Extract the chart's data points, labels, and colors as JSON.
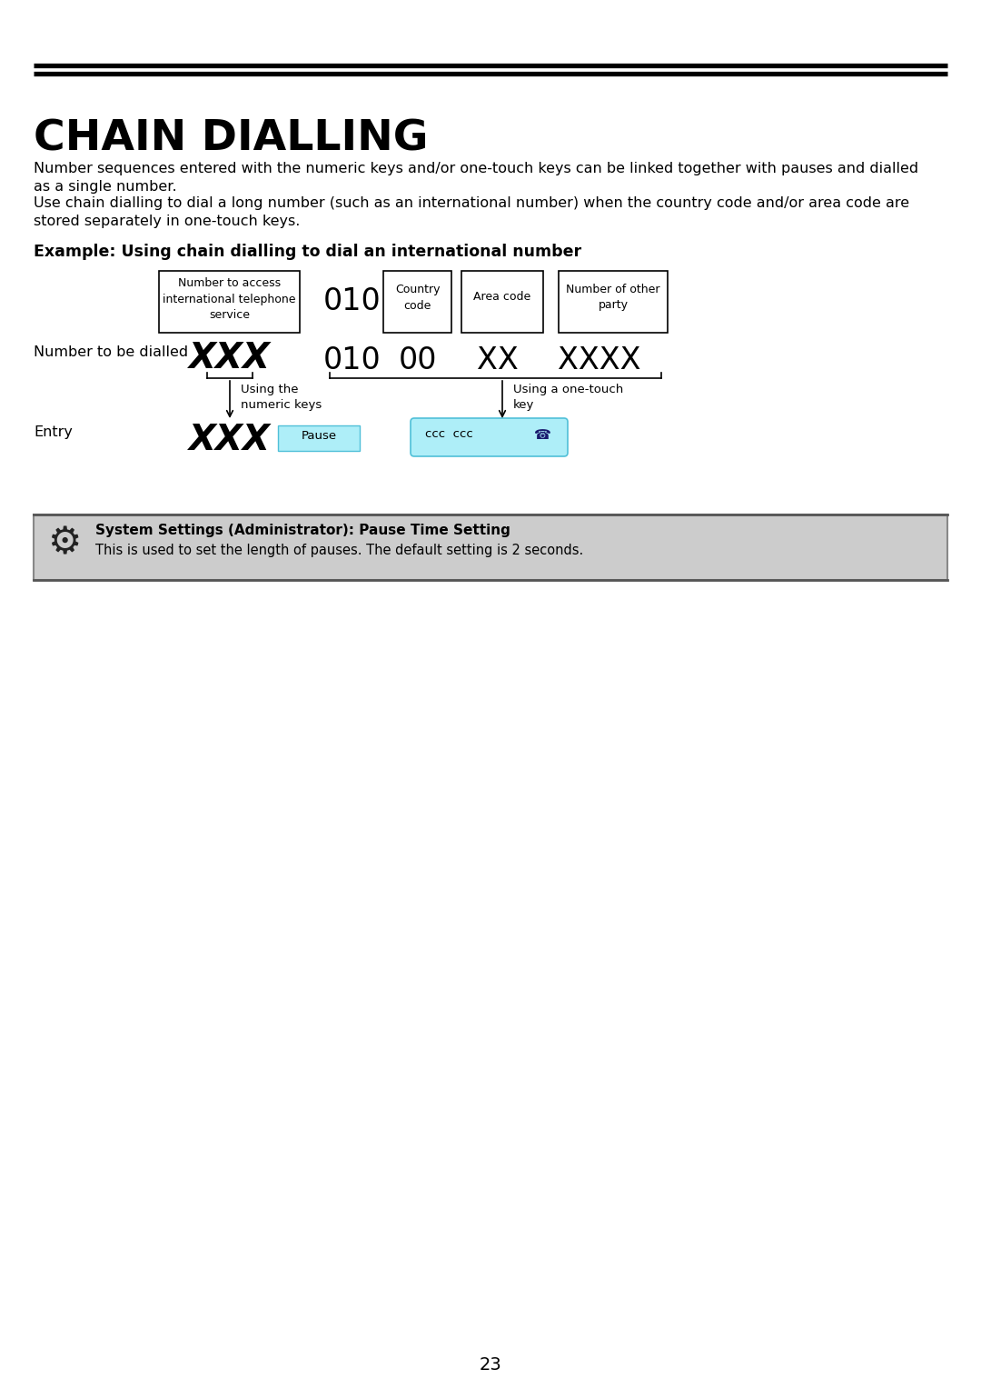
{
  "title": "CHAIN DIALLING",
  "page_number": "23",
  "bg_color": "#ffffff",
  "para1_line1": "Number sequences entered with the numeric keys and/or one-touch keys can be linked together with pauses and dialled",
  "para1_line2": "as a single number.",
  "para2_line1": "Use chain dialling to dial a long number (such as an international number) when the country code and/or area code are",
  "para2_line2": "stored separately in one-touch keys.",
  "example_label": "Example: Using chain dialling to dial an international number",
  "top_box_label": "Number to access\ninternational telephone\nservice",
  "num_010_top": "010",
  "country_code_label": "Country\ncode",
  "area_code_label": "Area code",
  "num_other_label": "Number of other\nparty",
  "row_label": "Number to be dialled",
  "xxx_dialled": "XXX",
  "num_row_010": "010",
  "num_row_00": "00",
  "num_row_xx": "XX",
  "num_row_xxxx": "XXXX",
  "using_numeric": "Using the\nnumeric keys",
  "using_onetouch": "Using a one-touch\nkey",
  "entry_label": "Entry",
  "entry_xxx": "XXX",
  "pause_text": "Pause",
  "pause_bg": "#aeeef8",
  "pause_border": "#50c0d8",
  "onetouch_text": "ccc  ccc",
  "onetouch_bg": "#aeeef8",
  "onetouch_border": "#50c0d8",
  "system_settings_title": "System Settings (Administrator): Pause Time Setting",
  "system_settings_body": "This is used to set the length of pauses. The default setting is 2 seconds.",
  "system_bg": "#cccccc",
  "system_border": "#888888"
}
